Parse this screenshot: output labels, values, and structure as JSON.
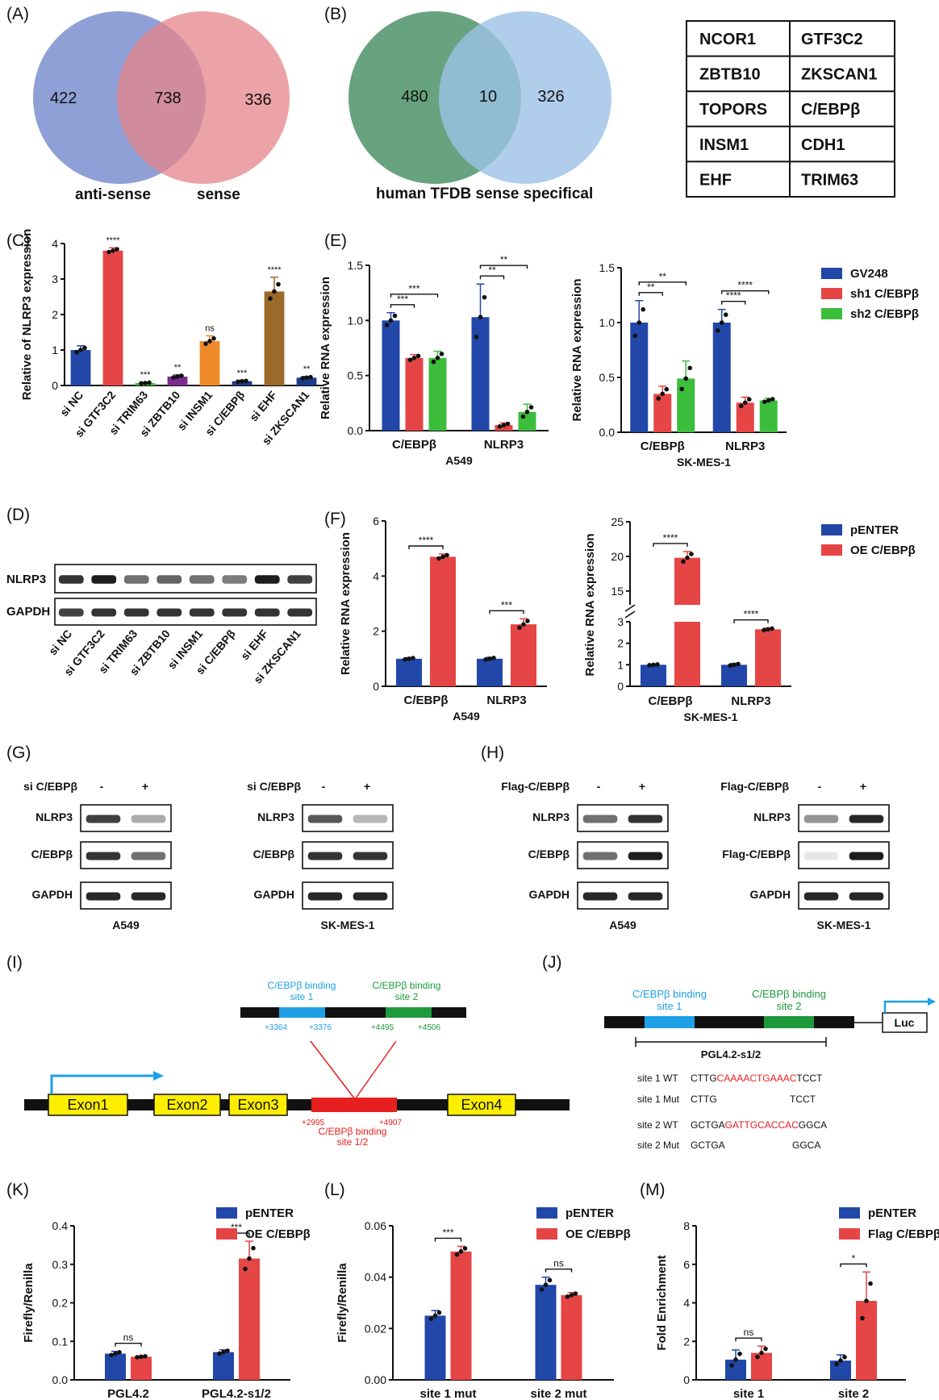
{
  "panels": {
    "A": "(A)",
    "B": "(B)",
    "C": "(C)",
    "D": "(D)",
    "E": "(E)",
    "F": "(F)",
    "G": "(G)",
    "H": "(H)",
    "I": "(I)",
    "J": "(J)",
    "K": "(K)",
    "L": "(L)",
    "M": "(M)"
  },
  "venn_a": {
    "left_count": "422",
    "overlap_count": "738",
    "right_count": "336",
    "left_label": "anti-sense",
    "right_label": "sense",
    "left_color": "#7b8fcf",
    "right_color": "#e6848a"
  },
  "venn_b": {
    "left_count": "480",
    "overlap_count": "10",
    "right_count": "326",
    "label": "human TFDB sense specifical",
    "left_color": "#5f9e78",
    "right_color": "#9cc2e6"
  },
  "tf_table": [
    [
      "NCOR1",
      "GTF3C2"
    ],
    [
      "ZBTB10",
      "ZKSCAN1"
    ],
    [
      "TOPORS",
      "C/EBPβ"
    ],
    [
      "INSM1",
      "CDH1"
    ],
    [
      "EHF",
      "TRIM63"
    ]
  ],
  "colors": {
    "blue": "#2147a8",
    "red": "#e64545",
    "green": "#3cbd3c",
    "purple": "#7a2b8f",
    "orange": "#ef8a2a",
    "brown": "#9b6a2b",
    "navy": "#1e3b8a",
    "text_red": "#e62020",
    "text_blue": "#1ea0e6",
    "text_green": "#1e9a3c",
    "exon_yellow": "#ffee00"
  },
  "chart_data": [
    {
      "id": "C",
      "type": "bar",
      "ylabel": "Relative of NLRP3 expression",
      "ylim": [
        0,
        4
      ],
      "yticks": [
        "0",
        "1",
        "2",
        "3",
        "4"
      ],
      "categories": [
        "si NC",
        "si GTF3C2",
        "si TRIM63",
        "si ZBTB10",
        "si INSM1",
        "si C/EBPβ",
        "si EHF",
        "si ZKSCAN1"
      ],
      "values": [
        1.0,
        3.8,
        0.07,
        0.25,
        1.25,
        0.12,
        2.65,
        0.22
      ],
      "errors": [
        0.12,
        0.08,
        0.02,
        0.05,
        0.15,
        0.02,
        0.4,
        0.03
      ],
      "significance": [
        "",
        "****",
        "***",
        "**",
        "ns",
        "***",
        "****",
        "**"
      ]
    },
    {
      "id": "E1",
      "type": "bar",
      "ylabel": "Relative RNA expression",
      "xlabel": "A549",
      "ylim": [
        0,
        1.5
      ],
      "yticks": [
        "0.0",
        "0.5",
        "1.0",
        "1.5"
      ],
      "categories": [
        "C/EBPβ",
        "NLRP3"
      ],
      "series": [
        {
          "name": "GV248",
          "values": [
            1.0,
            1.03
          ],
          "errors": [
            0.07,
            0.3
          ]
        },
        {
          "name": "sh1 C/EBPβ",
          "values": [
            0.66,
            0.05
          ],
          "errors": [
            0.03,
            0.02
          ]
        },
        {
          "name": "sh2 C/EBPβ",
          "values": [
            0.66,
            0.17
          ],
          "errors": [
            0.06,
            0.07
          ]
        }
      ],
      "significance": [
        "***",
        "***",
        "**",
        "**"
      ]
    },
    {
      "id": "E2",
      "type": "bar",
      "ylabel": "Relative RNA expression",
      "xlabel": "SK-MES-1",
      "ylim": [
        0,
        1.5
      ],
      "yticks": [
        "0.0",
        "0.5",
        "1.0",
        "1.5"
      ],
      "categories": [
        "C/EBPβ",
        "NLRP3"
      ],
      "series": [
        {
          "name": "GV248",
          "values": [
            1.0,
            1.0
          ],
          "errors": [
            0.2,
            0.12
          ]
        },
        {
          "name": "sh1 C/EBPβ",
          "values": [
            0.35,
            0.27
          ],
          "errors": [
            0.07,
            0.05
          ]
        },
        {
          "name": "sh2 C/EBPβ",
          "values": [
            0.49,
            0.29
          ],
          "errors": [
            0.16,
            0.02
          ]
        }
      ],
      "significance": [
        "**",
        "**",
        "****",
        "****"
      ]
    },
    {
      "id": "F1",
      "type": "bar",
      "ylabel": "Relative RNA expression",
      "xlabel": "A549",
      "ylim": [
        0,
        6
      ],
      "yticks": [
        "0",
        "2",
        "4",
        "6"
      ],
      "categories": [
        "C/EBPβ",
        "NLRP3"
      ],
      "series": [
        {
          "name": "pENTER",
          "values": [
            1.0,
            1.0
          ],
          "errors": [
            0.04,
            0.05
          ]
        },
        {
          "name": "OE C/EBPβ",
          "values": [
            4.7,
            2.25
          ],
          "errors": [
            0.1,
            0.2
          ]
        }
      ],
      "significance": [
        "****",
        "***"
      ]
    },
    {
      "id": "F2",
      "type": "bar",
      "ylabel": "Relative RNA expression",
      "xlabel": "SK-MES-1",
      "yticks": [
        "0",
        "1",
        "2",
        "3",
        "15",
        "20",
        "25"
      ],
      "axis_break": [
        3,
        13
      ],
      "categories": [
        "C/EBPβ",
        "NLRP3"
      ],
      "series": [
        {
          "name": "pENTER",
          "values": [
            1.0,
            1.0
          ],
          "errors": [
            0.03,
            0.06
          ]
        },
        {
          "name": "OE C/EBPβ",
          "values": [
            19.8,
            2.65
          ],
          "errors": [
            0.9,
            0.06
          ]
        }
      ],
      "significance": [
        "****",
        "****"
      ]
    },
    {
      "id": "K",
      "type": "bar",
      "ylabel": "Firefly/Renilla",
      "ylim": [
        0,
        0.4
      ],
      "yticks": [
        "0.0",
        "0.1",
        "0.2",
        "0.3",
        "0.4"
      ],
      "categories": [
        "PGL4.2",
        "PGL4.2-s1/2"
      ],
      "series": [
        {
          "name": "pENTER",
          "values": [
            0.068,
            0.072
          ],
          "errors": [
            0.006,
            0.006
          ]
        },
        {
          "name": "OE C/EBPβ",
          "values": [
            0.06,
            0.315
          ],
          "errors": [
            0.002,
            0.045
          ]
        }
      ],
      "significance": [
        "ns",
        "***"
      ]
    },
    {
      "id": "L",
      "type": "bar",
      "ylabel": "Firefly/Renilla",
      "ylim": [
        0,
        0.06
      ],
      "yticks": [
        "0.00",
        "0.02",
        "0.04",
        "0.06"
      ],
      "categories": [
        "site 1 mut",
        "site 2 mut"
      ],
      "series": [
        {
          "name": "pENTER",
          "values": [
            0.025,
            0.037
          ],
          "errors": [
            0.002,
            0.003
          ]
        },
        {
          "name": "OE C/EBPβ",
          "values": [
            0.05,
            0.033
          ],
          "errors": [
            0.002,
            0.001
          ]
        }
      ],
      "significance": [
        "***",
        "ns"
      ]
    },
    {
      "id": "M",
      "type": "bar",
      "ylabel": "Fold Enrichment",
      "ylim": [
        0,
        8
      ],
      "yticks": [
        "0",
        "2",
        "4",
        "6",
        "8"
      ],
      "categories": [
        "site 1",
        "site 2"
      ],
      "series": [
        {
          "name": "pENTER",
          "values": [
            1.05,
            1.0
          ],
          "errors": [
            0.5,
            0.3
          ]
        },
        {
          "name": "Flag C/EBPβ",
          "values": [
            1.4,
            4.1
          ],
          "errors": [
            0.35,
            1.5
          ]
        }
      ],
      "significance": [
        "ns",
        "*"
      ]
    }
  ],
  "legend_E": [
    "GV248",
    "sh1 C/EBPβ",
    "sh2 C/EBPβ"
  ],
  "legend_F": [
    "pENTER",
    "OE C/EBPβ"
  ],
  "legend_K": [
    "pENTER",
    "OE C/EBPβ"
  ],
  "legend_L": [
    "pENTER",
    "OE C/EBPβ"
  ],
  "legend_M": [
    "pENTER",
    "Flag C/EBPβ"
  ],
  "blot_D": {
    "rows": [
      "NLRP3",
      "GAPDH"
    ],
    "lanes": [
      "si NC",
      "si GTF3C2",
      "si TRIM63",
      "si ZBTB10",
      "si INSM1",
      "si C/EBPβ",
      "si EHF",
      "si ZKSCAN1"
    ]
  },
  "blot_G1": {
    "treatment": "si C/EBPβ",
    "minus": "-",
    "plus": "+",
    "rows": [
      "NLRP3",
      "C/EBPβ",
      "GAPDH"
    ],
    "cell": "A549"
  },
  "blot_G2": {
    "treatment": "si C/EBPβ",
    "minus": "-",
    "plus": "+",
    "rows": [
      "NLRP3",
      "C/EBPβ",
      "GAPDH"
    ],
    "cell": "SK-MES-1"
  },
  "blot_H1": {
    "treatment": "Flag-C/EBPβ",
    "minus": "-",
    "plus": "+",
    "rows": [
      "NLRP3",
      "C/EBPβ",
      "GAPDH"
    ],
    "cell": "A549"
  },
  "blot_H2": {
    "treatment": "Flag-C/EBPβ",
    "minus": "-",
    "plus": "+",
    "rows": [
      "NLRP3",
      "Flag-C/EBPβ",
      "GAPDH"
    ],
    "cell": "SK-MES-1"
  },
  "gene_map_I": {
    "site1_title_a": "C/EBPβ binding",
    "site1_title_b": "site 1",
    "site2_title_a": "C/EBPβ binding",
    "site2_title_b": "site 2",
    "pos1": "+3364",
    "pos2": "+3376",
    "pos3": "+4495",
    "pos4": "+4506",
    "exons": [
      "Exon1",
      "Exon2",
      "Exon3",
      "Exon4"
    ],
    "region_start": "+2995",
    "region_end": "+4907",
    "region_label_a": "C/EBPβ binding",
    "region_label_b": "site 1/2"
  },
  "construct_J": {
    "site1_title_a": "C/EBPβ binding",
    "site1_title_b": "site 1",
    "site2_title_a": "C/EBPβ binding",
    "site2_title_b": "site 2",
    "reporter": "Luc",
    "construct_name": "PGL4.2-s1/2",
    "seqs": [
      {
        "label": "site 1 WT",
        "left": "CTTG",
        "mid": "CAAAACTGAAAC",
        "right": "TCCT"
      },
      {
        "label": "site 1 Mut",
        "left": "CTTG",
        "mid": "",
        "right": "TCCT"
      },
      {
        "label": "site 2 WT",
        "left": "GCTGA",
        "mid": "GATTGCACCAC",
        "right": "GGCA"
      },
      {
        "label": "site 2 Mut",
        "left": "GCTGA",
        "mid": "",
        "right": "GGCA"
      }
    ]
  }
}
